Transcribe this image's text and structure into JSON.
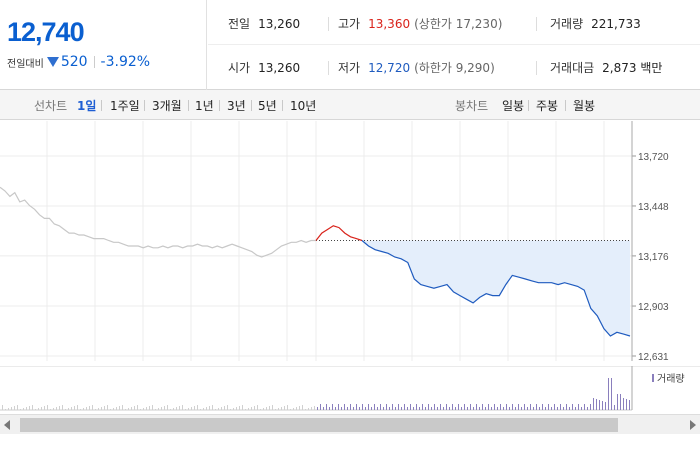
{
  "quote": {
    "price": "12,740",
    "change_label": "전일대비",
    "change_amount": "520",
    "change_percent": "-3.92%"
  },
  "stats": {
    "prev_close": {
      "label": "전일",
      "value": "13,260"
    },
    "high": {
      "label": "고가",
      "value": "13,360",
      "sub": "(상한가 17,230)"
    },
    "volume": {
      "label": "거래량",
      "value": "221,733"
    },
    "open": {
      "label": "시가",
      "value": "13,260"
    },
    "low": {
      "label": "저가",
      "value": "12,720",
      "sub": "(하한가 9,290)"
    },
    "amount": {
      "label": "거래대금",
      "value": "2,873 백만"
    }
  },
  "tabs": {
    "line_label": "선차트",
    "line_periods": [
      "1일",
      "1주일",
      "3개월",
      "1년",
      "3년",
      "5년",
      "10년"
    ],
    "candle_label": "봉차트",
    "candle_periods": [
      "일봉",
      "주봉",
      "월봉"
    ]
  },
  "colors": {
    "up": "#d9231b",
    "down": "#1f5bbf",
    "accent": "#1e5ed4",
    "history": "#c8c8c8",
    "fill": "#e4eefb"
  },
  "chart_data": {
    "type": "line",
    "y_ticks": [
      "13,720",
      "13,448",
      "13,176",
      "12,903",
      "12,631"
    ],
    "ylim": [
      12631,
      13720
    ],
    "grid": true,
    "reference_value": 13260,
    "volume_label": "거래량",
    "series": [
      {
        "values": [
          13550,
          13530,
          13500,
          13520,
          13470,
          13480,
          13450,
          13430,
          13400,
          13380,
          13380,
          13350,
          13340,
          13320,
          13300,
          13300,
          13290,
          13290,
          13280,
          13270,
          13270,
          13270,
          13260,
          13250,
          13250,
          13240,
          13230,
          13230,
          13230,
          13220,
          13230,
          13220,
          13220,
          13230,
          13220,
          13230,
          13230,
          13220,
          13230,
          13230,
          13240,
          13230,
          13230,
          13220,
          13230,
          13220,
          13230,
          13240,
          13230,
          13220,
          13210,
          13200,
          13180,
          13170,
          13180,
          13190,
          13210,
          13230,
          13240,
          13250,
          13250,
          13260,
          13250,
          13260,
          13260
        ]
      },
      {
        "values": [
          13260,
          13300,
          13320,
          13340,
          13330,
          13300,
          13280,
          13270,
          13260
        ]
      },
      {
        "values": [
          13260,
          13230,
          13210,
          13200,
          13190,
          13170,
          13160,
          13140,
          13050,
          13020,
          13010,
          13000,
          13010,
          13020,
          12980,
          12960,
          12940,
          12920,
          12950,
          12970,
          12960,
          12960,
          13020,
          13070,
          13060,
          13050,
          13040,
          13030,
          13030,
          13030,
          13020,
          13030,
          13020,
          13010,
          12990,
          12890,
          12850,
          12780,
          12740,
          12760,
          12750,
          12740
        ]
      }
    ]
  }
}
